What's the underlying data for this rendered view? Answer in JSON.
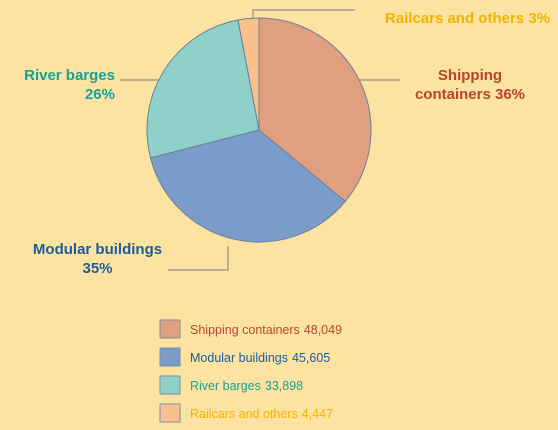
{
  "chart_data": {
    "type": "pie",
    "categories": [
      "Shipping containers",
      "Modular buildings",
      "River barges",
      "Railcars and others"
    ],
    "values": [
      36,
      35,
      26,
      3
    ],
    "value_labels": [
      "36%",
      "35%",
      "26%",
      "3%"
    ],
    "counts": [
      48049,
      45605,
      33898,
      4447
    ],
    "count_labels": [
      "48,049",
      "45,605",
      "33,898",
      "4,447"
    ],
    "colors": [
      "#e0a080",
      "#7b9bc9",
      "#8fd1c9",
      "#f9c18b"
    ],
    "label_colors": [
      "#b8442c",
      "#1b5c9c",
      "#16a297",
      "#f0b400"
    ]
  }
}
